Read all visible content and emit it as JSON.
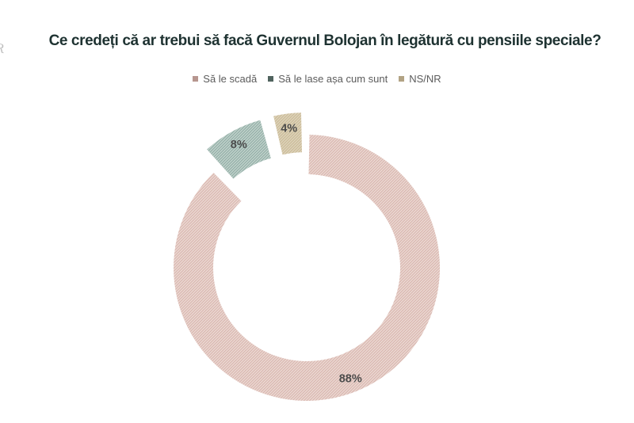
{
  "page": {
    "background": "#ffffff",
    "logo_fragment": "R"
  },
  "header": {
    "title": "Ce credeți că ar trebui să facă Guvernul Bolojan în legătură cu pensiile speciale?",
    "title_color": "#1e3231"
  },
  "chart_data": {
    "type": "pie",
    "subtype": "donut",
    "title": "Ce credeți că ar trebui să facă Guvernul Bolojan în legătură cu pensiile speciale?",
    "categories": [
      "Să le scadă",
      "Să le lase așa cum sunt",
      "NS/NR"
    ],
    "values": [
      88,
      8,
      4
    ],
    "data_labels": [
      "88%",
      "8%",
      "4%"
    ],
    "colors": [
      {
        "base": "#EDDCD7",
        "hatch": "#D8B5AD",
        "marker": "#B7968F"
      },
      {
        "base": "#C7D6D0",
        "hatch": "#8FACA4",
        "marker": "#50635E"
      },
      {
        "base": "#E0D6BF",
        "hatch": "#C9B995",
        "marker": "#B2A384"
      }
    ],
    "fill_style": "diagonal-hatch",
    "legend_position": "top",
    "legend_text_color": "#5B5B5B",
    "data_label_color": "#4C4C4C",
    "start_angle": 0,
    "direction": "clockwise",
    "inner_radius_ratio": 0.7,
    "exploded_slices": [
      false,
      true,
      true
    ]
  }
}
